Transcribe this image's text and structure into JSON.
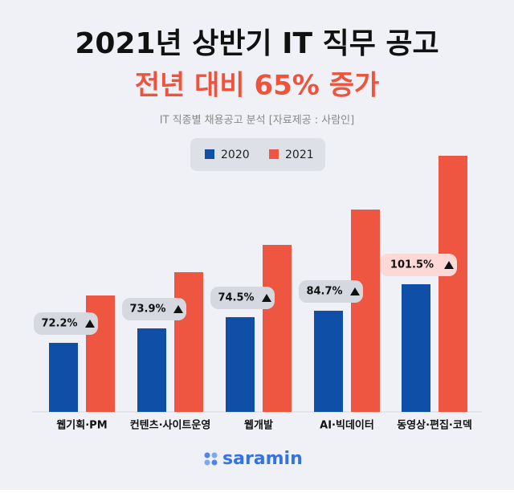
{
  "chart_data": {
    "type": "bar",
    "title": "2021년 상반기 IT 직무 공고",
    "subtitle": "전년 대비 65% 증가",
    "source": "IT 직종별 채용공고 분석 [자료제공 : 사람인]",
    "categories": [
      "웹기획·PM",
      "컨텐츠·사이트운영",
      "웹개발",
      "AI·빅데이터",
      "동영상·편집·코덱"
    ],
    "series": [
      {
        "name": "2020",
        "color": "#0f4fa8",
        "values": [
          86,
          104,
          118,
          126,
          159
        ]
      },
      {
        "name": "2021",
        "color": "#ee5642",
        "values": [
          145,
          174,
          208,
          252,
          319
        ]
      }
    ],
    "annotations": [
      "72.2%",
      "73.9%",
      "74.5%",
      "84.7%",
      "101.5%"
    ],
    "logo": "saramin"
  }
}
